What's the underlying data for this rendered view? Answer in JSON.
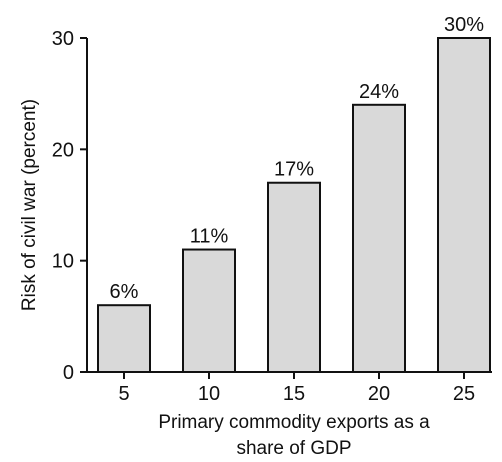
{
  "chart_data": {
    "type": "bar",
    "categories": [
      "5",
      "10",
      "15",
      "20",
      "25"
    ],
    "values": [
      6,
      11,
      17,
      24,
      30
    ],
    "value_labels": [
      "6%",
      "11%",
      "17%",
      "24%",
      "30%"
    ],
    "title": "",
    "xlabel_lines": [
      "Primary commodity exports as a",
      "share of GDP"
    ],
    "ylabel": "Risk of civil war (percent)",
    "ylim": [
      0,
      30
    ],
    "yticks": [
      0,
      10,
      20,
      30
    ],
    "grid": false,
    "colors": {
      "bar_fill": "#d9d9d9",
      "bar_stroke": "#111111",
      "axis": "#111111",
      "text": "#111111"
    }
  }
}
